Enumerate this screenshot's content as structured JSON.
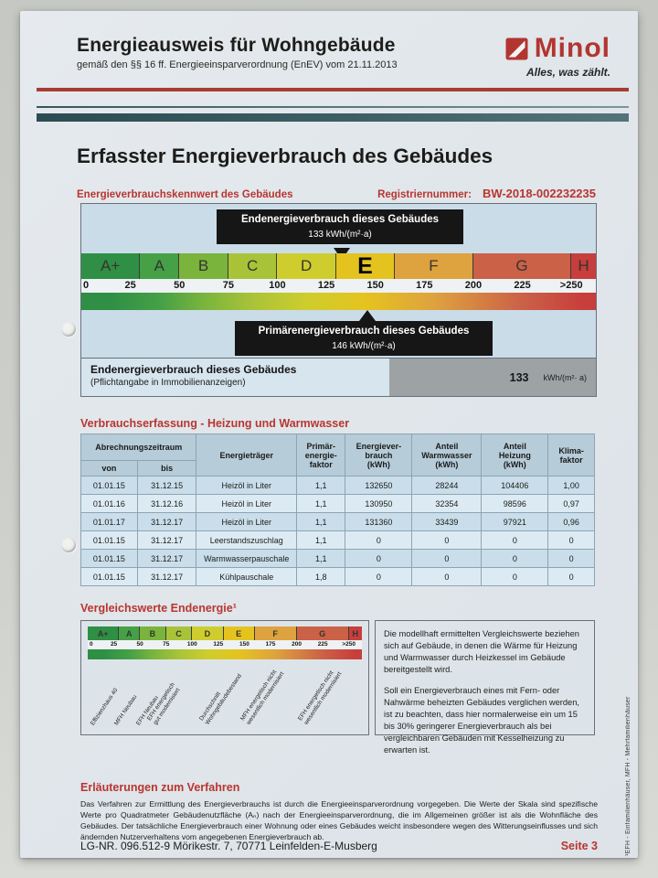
{
  "header": {
    "title": "Energieausweis für Wohngebäude",
    "subtitle": "gemäß den §§ 16 ff. Energieeinsparverordnung (EnEV) vom 21.11.2013",
    "brand": {
      "name": "Minol",
      "tagline": "Alles, was zählt.",
      "color": "#b23531"
    }
  },
  "document": {
    "heading": "Erfasster Energieverbrauch des Gebäudes",
    "kennwert_label": "Energieverbrauchskennwert des Gebäudes",
    "registry_label": "Registriernummer:",
    "registry_number": "BW-2018-002232235",
    "accent_red": "#b93530"
  },
  "energy_scale": {
    "max": 262.5,
    "highlight_class": "E",
    "classes": [
      {
        "label": "A+",
        "from": 0,
        "to": 30,
        "color": "#2f8f45"
      },
      {
        "label": "A",
        "from": 30,
        "to": 50,
        "color": "#45a046"
      },
      {
        "label": "B",
        "from": 50,
        "to": 75,
        "color": "#7ab43d"
      },
      {
        "label": "C",
        "from": 75,
        "to": 100,
        "color": "#a9c338"
      },
      {
        "label": "D",
        "from": 100,
        "to": 130,
        "color": "#cecd2d"
      },
      {
        "label": "E",
        "from": 130,
        "to": 160,
        "color": "#e5c31f"
      },
      {
        "label": "F",
        "from": 160,
        "to": 200,
        "color": "#dea23f"
      },
      {
        "label": "G",
        "from": 200,
        "to": 250,
        "color": "#cb6147"
      },
      {
        "label": "H",
        "from": 250,
        "to": 262.5,
        "color": "#c73e3c"
      }
    ],
    "ticks": [
      {
        "label": "0",
        "value": 0
      },
      {
        "label": "25",
        "value": 25
      },
      {
        "label": "50",
        "value": 50
      },
      {
        "label": "75",
        "value": 75
      },
      {
        "label": "100",
        "value": 100
      },
      {
        "label": "125",
        "value": 125
      },
      {
        "label": "150",
        "value": 150
      },
      {
        "label": "175",
        "value": 175
      },
      {
        "label": "200",
        "value": 200
      },
      {
        "label": "225",
        "value": 225
      },
      {
        "label": ">250",
        "value": 250
      }
    ],
    "end_energy_marker": {
      "title": "Endenergieverbrauch dieses Gebäudes",
      "value_text": "133 kWh/(m²·a)",
      "value": 133
    },
    "primary_energy_marker": {
      "title": "Primärenergieverbrauch dieses Gebäudes",
      "value_text": "146 kWh/(m²·a)",
      "value": 146
    },
    "result_row": {
      "label": "Endenergieverbrauch dieses Gebäudes",
      "sublabel": "(Pflichtangabe in Immobilienanzeigen)",
      "value": "133",
      "unit": "kWh/(m²· a)"
    }
  },
  "consumption_table": {
    "section_title": "Verbrauchserfassung - Heizung und Warmwasser",
    "headers": {
      "abrechnungszeitraum": "Abrechnungszeitraum",
      "von": "von",
      "bis": "bis",
      "energietraeger": "Energieträger",
      "primaerfaktor": "Primär-\nenergie-\nfaktor",
      "verbrauch": "Energiever-\nbrauch\n(kWh)",
      "anteil_warmwasser": "Anteil\nWarmwasser\n(kWh)",
      "anteil_heizung": "Anteil\nHeizung\n(kWh)",
      "klimafaktor": "Klima-\nfaktor"
    },
    "rows": [
      [
        "01.01.15",
        "31.12.15",
        "Heizöl in Liter",
        "1,1",
        "132650",
        "28244",
        "104406",
        "1,00"
      ],
      [
        "01.01.16",
        "31.12.16",
        "Heizöl in Liter",
        "1,1",
        "130950",
        "32354",
        "98596",
        "0,97"
      ],
      [
        "01.01.17",
        "31.12.17",
        "Heizöl in Liter",
        "1,1",
        "131360",
        "33439",
        "97921",
        "0,96"
      ],
      [
        "01.01.15",
        "31.12.17",
        "Leerstandszuschlag",
        "1,1",
        "0",
        "0",
        "0",
        "0"
      ],
      [
        "01.01.15",
        "31.12.17",
        "Warmwasserpauschale",
        "1,1",
        "0",
        "0",
        "0",
        "0"
      ],
      [
        "01.01.15",
        "31.12.17",
        "Kühlpauschale",
        "1,8",
        "0",
        "0",
        "0",
        "0"
      ]
    ]
  },
  "comparison": {
    "section_title": "Vergleichswerte Endenergie¹",
    "labels": [
      {
        "text": "Effizienzhaus 40",
        "pos_pct": 3
      },
      {
        "text": "MFH Neubau",
        "pos_pct": 11.5
      },
      {
        "text": "EFH Neubau",
        "pos_pct": 19.5
      },
      {
        "text": "EFH energetisch\ngut modernisiert",
        "pos_pct": 26
      },
      {
        "text": "Durchschnitt\nWohngebäudebestand",
        "pos_pct": 45
      },
      {
        "text": "MFH energetisch nicht\nwesentlich modernisiert",
        "pos_pct": 60
      },
      {
        "text": "EFH energetisch nicht\nwesentlich modernisiert",
        "pos_pct": 81
      }
    ],
    "notes": [
      "Die modellhaft ermittelten Vergleichswerte beziehen sich auf Gebäude, in denen die Wärme für Heizung und Warmwasser durch Heizkessel im Gebäude bereitgestellt wird.",
      "Soll ein Energieverbrauch eines mit Fern- oder Nahwärme beheizten Gebäudes verglichen werden, ist zu beachten, dass hier normalerweise ein um 15 bis 30% geringerer Energieverbrauch als bei vergleichbaren Gebäuden mit Kesselheizung zu erwarten ist.",
      "¹EFH - Einfamilienhäuser, MFH - Mehrfamilienhäuser"
    ]
  },
  "explanation": {
    "title": "Erläuterungen zum Verfahren",
    "body": "Das Verfahren zur Ermittlung des Energieverbrauchs ist durch die Energieeinsparverordnung vorgegeben. Die Werte der Skala sind spezifische Werte pro Quadratmeter Gebäudenutzfläche (Aₙ) nach der Energieeinsparverordnung, die im Allgemeinen größer ist als die Wohnfläche des Gebäudes. Der tatsächliche Energieverbrauch einer Wohnung oder eines Gebäudes weicht insbesondere wegen des Witterungseinflusses und sich ändernden Nutzerverhaltens vom angegebenen Energieverbrauch ab.",
    "footer_left": "LG-NR. 096.512-9 Mörikestr. 7, 70771 Leinfelden-E-Musberg",
    "page_label": "Seite 3"
  }
}
